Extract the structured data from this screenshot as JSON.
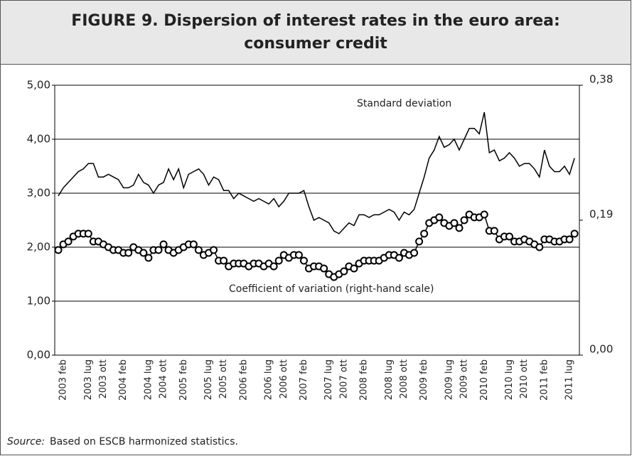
{
  "chart_data": {
    "type": "line",
    "title": [
      "FIGURE 9. Dispersion of interest rates in the euro area:",
      "consumer credit"
    ],
    "source_label": "Source:",
    "source": "Based on ESCB harmonized statistics.",
    "categories": [
      null,
      "2003 feb",
      null,
      null,
      null,
      null,
      "2003 lug",
      null,
      null,
      "2003 ott",
      null,
      null,
      null,
      "2004 feb",
      null,
      null,
      null,
      null,
      "2004 lug",
      null,
      null,
      "2004 ott",
      null,
      null,
      null,
      "2005 feb",
      null,
      null,
      null,
      null,
      "2005 lug",
      null,
      null,
      "2005 ott",
      null,
      null,
      null,
      "2006 feb",
      null,
      null,
      null,
      null,
      "2006 lug",
      null,
      null,
      "2006 ott",
      null,
      null,
      null,
      "2007 feb",
      null,
      null,
      null,
      null,
      "2007 lug",
      null,
      null,
      "2007 ott",
      null,
      null,
      null,
      "2008 feb",
      null,
      null,
      null,
      null,
      "2008 lug",
      null,
      null,
      "2008 ott",
      null,
      null,
      null,
      "2009 feb",
      null,
      null,
      null,
      null,
      "2009 lug",
      null,
      null,
      "2009 ott",
      null,
      null,
      null,
      "2010 feb",
      null,
      null,
      null,
      null,
      "2010 lug",
      null,
      null,
      "2010 ott",
      null,
      null,
      null,
      "2011 feb",
      null,
      null,
      null,
      null,
      "2011 lug",
      null
    ],
    "series": [
      {
        "name": "Standard deviation",
        "color": "#000000",
        "markers": false,
        "values": [
          2.95,
          3.1,
          3.2,
          3.3,
          3.4,
          3.45,
          3.55,
          3.55,
          3.3,
          3.3,
          3.35,
          3.3,
          3.25,
          3.1,
          3.1,
          3.15,
          3.35,
          3.2,
          3.15,
          3.0,
          3.15,
          3.2,
          3.45,
          3.25,
          3.45,
          3.1,
          3.35,
          3.4,
          3.45,
          3.35,
          3.15,
          3.3,
          3.25,
          3.05,
          3.05,
          2.9,
          3.0,
          2.95,
          2.9,
          2.85,
          2.9,
          2.85,
          2.8,
          2.9,
          2.75,
          2.85,
          3.0,
          3.0,
          3.0,
          3.05,
          2.75,
          2.5,
          2.55,
          2.5,
          2.45,
          2.3,
          2.25,
          2.35,
          2.45,
          2.4,
          2.6,
          2.6,
          2.55,
          2.6,
          2.6,
          2.65,
          2.7,
          2.65,
          2.5,
          2.65,
          2.6,
          2.7,
          3.0,
          3.3,
          3.65,
          3.8,
          4.05,
          3.85,
          3.9,
          4.0,
          3.8,
          4.0,
          4.2,
          4.2,
          4.1,
          4.5,
          3.75,
          3.8,
          3.6,
          3.65,
          3.75,
          3.65,
          3.5,
          3.55,
          3.55,
          3.45,
          3.3,
          3.8,
          3.5,
          3.4,
          3.4,
          3.5,
          3.35,
          3.65
        ]
      },
      {
        "name": "Coefficient of variation (right-hand scale)",
        "color": "#000000",
        "markers": true,
        "axis": "y2",
        "values": [
          0.148,
          0.156,
          0.16,
          0.167,
          0.171,
          0.171,
          0.171,
          0.16,
          0.16,
          0.156,
          0.152,
          0.148,
          0.148,
          0.144,
          0.144,
          0.152,
          0.148,
          0.144,
          0.137,
          0.148,
          0.148,
          0.156,
          0.148,
          0.144,
          0.148,
          0.152,
          0.156,
          0.156,
          0.148,
          0.141,
          0.144,
          0.148,
          0.133,
          0.133,
          0.125,
          0.129,
          0.129,
          0.129,
          0.125,
          0.129,
          0.129,
          0.125,
          0.129,
          0.125,
          0.133,
          0.141,
          0.137,
          0.141,
          0.141,
          0.133,
          0.122,
          0.125,
          0.125,
          0.122,
          0.114,
          0.11,
          0.114,
          0.118,
          0.125,
          0.122,
          0.129,
          0.133,
          0.133,
          0.133,
          0.133,
          0.137,
          0.141,
          0.141,
          0.137,
          0.144,
          0.141,
          0.144,
          0.16,
          0.171,
          0.186,
          0.19,
          0.194,
          0.186,
          0.182,
          0.186,
          0.179,
          0.19,
          0.198,
          0.194,
          0.194,
          0.198,
          0.175,
          0.175,
          0.163,
          0.167,
          0.167,
          0.16,
          0.16,
          0.163,
          0.16,
          0.156,
          0.152,
          0.163,
          0.163,
          0.16,
          0.16,
          0.163,
          0.163,
          0.171
        ]
      }
    ],
    "ylim": [
      0,
      5
    ],
    "yticks": [
      {
        "value": 0,
        "label": "0,00"
      },
      {
        "value": 1,
        "label": "1,00"
      },
      {
        "value": 2,
        "label": "2,00"
      },
      {
        "value": 3,
        "label": "3,00"
      },
      {
        "value": 4,
        "label": "4,00"
      },
      {
        "value": 5,
        "label": "5,00"
      }
    ],
    "y2lim": [
      0,
      0.38
    ],
    "y2ticks": [
      {
        "value": 0,
        "label": "0,00"
      },
      {
        "value": 0.19,
        "label": "0,19"
      },
      {
        "value": 0.38,
        "label": "0,38"
      }
    ],
    "grid": true
  }
}
